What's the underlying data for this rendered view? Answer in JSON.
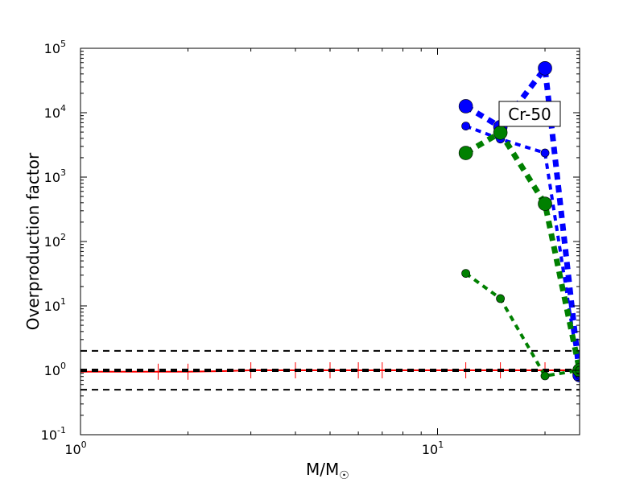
{
  "chart_data": {
    "type": "line",
    "title": "",
    "xlabel": "M/M",
    "xlabel_sub": "☉",
    "ylabel": "Overproduction factor",
    "xscale": "log",
    "yscale": "log",
    "xlim": [
      1,
      25
    ],
    "ylim": [
      0.1,
      100000
    ],
    "xticks": [
      {
        "v": 1,
        "b": "10",
        "e": "0"
      },
      {
        "v": 10,
        "b": "10",
        "e": "1"
      }
    ],
    "yticks": [
      {
        "v": 0.1,
        "b": "10",
        "e": "-1"
      },
      {
        "v": 1,
        "b": "10",
        "e": "0"
      },
      {
        "v": 10,
        "b": "10",
        "e": "1"
      },
      {
        "v": 100,
        "b": "10",
        "e": "2"
      },
      {
        "v": 1000,
        "b": "10",
        "e": "3"
      },
      {
        "v": 10000,
        "b": "10",
        "e": "4"
      },
      {
        "v": 100000,
        "b": "10",
        "e": "5"
      }
    ],
    "annotation": "Cr-50",
    "hlines": [
      {
        "y": 2,
        "color": "#000000"
      },
      {
        "y": 1,
        "color": "#000000"
      },
      {
        "y": 0.5,
        "color": "#000000"
      }
    ],
    "reference": {
      "name": "imf-reference",
      "color": "#ff0000",
      "x": [
        1,
        1.65,
        2,
        2.5,
        3,
        4,
        5,
        6,
        7,
        12,
        15,
        20,
        25
      ],
      "y": [
        0.95,
        0.95,
        0.95,
        0.97,
        1,
        1,
        1,
        1,
        1,
        1,
        1,
        1,
        1
      ]
    },
    "series": [
      {
        "name": "blue-large",
        "color": "#0000ff",
        "width": 7,
        "marker": 10,
        "x": [
          12,
          15,
          20,
          25
        ],
        "y": [
          12600,
          6000,
          49000,
          0.84
        ]
      },
      {
        "name": "blue-small",
        "color": "#0000ff",
        "width": 4,
        "marker": 6,
        "x": [
          12,
          15,
          20,
          25
        ],
        "y": [
          6200,
          3900,
          2370,
          0.84
        ]
      },
      {
        "name": "green-large",
        "color": "#008000",
        "width": 7,
        "marker": 10,
        "x": [
          12,
          15,
          20,
          25
        ],
        "y": [
          2370,
          4900,
          385,
          1.0
        ]
      },
      {
        "name": "green-small",
        "color": "#008000",
        "width": 4,
        "marker": 6,
        "x": [
          12,
          15,
          20,
          25
        ],
        "y": [
          32,
          13,
          0.82,
          1.0
        ]
      }
    ]
  }
}
